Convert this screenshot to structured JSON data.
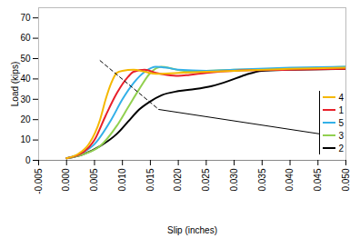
{
  "chart_data": {
    "type": "line",
    "x_label": "Slip (inches)",
    "y_label": "Load (kips)",
    "xlim": [
      -0.005,
      0.05
    ],
    "ylim": [
      0,
      75
    ],
    "xticks": [
      {
        "value": -0.005,
        "label": "-0.005"
      },
      {
        "value": 0,
        "label": "0.000"
      },
      {
        "value": 0.005,
        "label": "0.005"
      },
      {
        "value": 0.01,
        "label": "0.010"
      },
      {
        "value": 0.015,
        "label": "0.015"
      },
      {
        "value": 0.02,
        "label": "0.020"
      },
      {
        "value": 0.025,
        "label": "0.025"
      },
      {
        "value": 0.03,
        "label": "0.030"
      },
      {
        "value": 0.035,
        "label": "0.035"
      },
      {
        "value": 0.04,
        "label": "0.040"
      },
      {
        "value": 0.045,
        "label": "0.045"
      },
      {
        "value": 0.05,
        "label": "0.050"
      }
    ],
    "yticks": [
      0,
      10,
      20,
      30,
      40,
      50,
      60,
      70
    ],
    "grid": false,
    "legend": "right",
    "series": [
      {
        "name": "4",
        "color": "#f5b800",
        "x": [
          0,
          0.002,
          0.004,
          0.006,
          0.007,
          0.008,
          0.009,
          0.01,
          0.012,
          0.014,
          0.016,
          0.02,
          0.025,
          0.03,
          0.04,
          0.05
        ],
        "values": [
          1,
          3,
          8,
          20,
          30,
          38,
          43,
          44,
          44.5,
          43.5,
          42.5,
          43,
          43.5,
          44,
          45,
          45.5
        ]
      },
      {
        "name": "1",
        "color": "#e8202a",
        "x": [
          0,
          0.003,
          0.005,
          0.007,
          0.009,
          0.011,
          0.012,
          0.014,
          0.016,
          0.018,
          0.02,
          0.022,
          0.025,
          0.03,
          0.04,
          0.05
        ],
        "values": [
          1,
          4,
          10,
          22,
          33,
          41,
          43.5,
          44.5,
          43,
          42,
          41.5,
          42,
          43,
          44,
          44.5,
          45
        ]
      },
      {
        "name": "5",
        "color": "#33b0e8",
        "x": [
          0,
          0.003,
          0.005,
          0.008,
          0.01,
          0.012,
          0.014,
          0.016,
          0.018,
          0.02,
          0.025,
          0.03,
          0.04,
          0.05
        ],
        "values": [
          1,
          4,
          8,
          20,
          30,
          38,
          43.5,
          46,
          45.5,
          44.5,
          44,
          44.5,
          45.5,
          46
        ]
      },
      {
        "name": "3",
        "color": "#92d050",
        "x": [
          0,
          0.003,
          0.006,
          0.009,
          0.011,
          0.013,
          0.015,
          0.017,
          0.019,
          0.021,
          0.025,
          0.03,
          0.04,
          0.05
        ],
        "values": [
          1,
          3,
          7,
          17,
          26,
          35,
          43,
          46,
          45,
          44,
          44,
          44.5,
          45,
          46
        ]
      },
      {
        "name": "2",
        "color": "#000000",
        "x": [
          0,
          0.003,
          0.006,
          0.009,
          0.011,
          0.013,
          0.015,
          0.017,
          0.02,
          0.023,
          0.026,
          0.029,
          0.032,
          0.035,
          0.04,
          0.05
        ],
        "values": [
          1,
          3,
          7,
          13,
          19,
          25,
          29,
          32,
          34,
          35,
          36.5,
          39,
          42,
          44,
          44.5,
          45
        ]
      }
    ],
    "annotation_lines": [
      {
        "x": [
          0.006,
          0.0165
        ],
        "y": [
          49,
          25
        ],
        "line_style": "dashed"
      },
      {
        "x": [
          0.0165,
          0.0465
        ],
        "y": [
          25,
          12.5
        ],
        "line_style": "solid"
      }
    ]
  }
}
